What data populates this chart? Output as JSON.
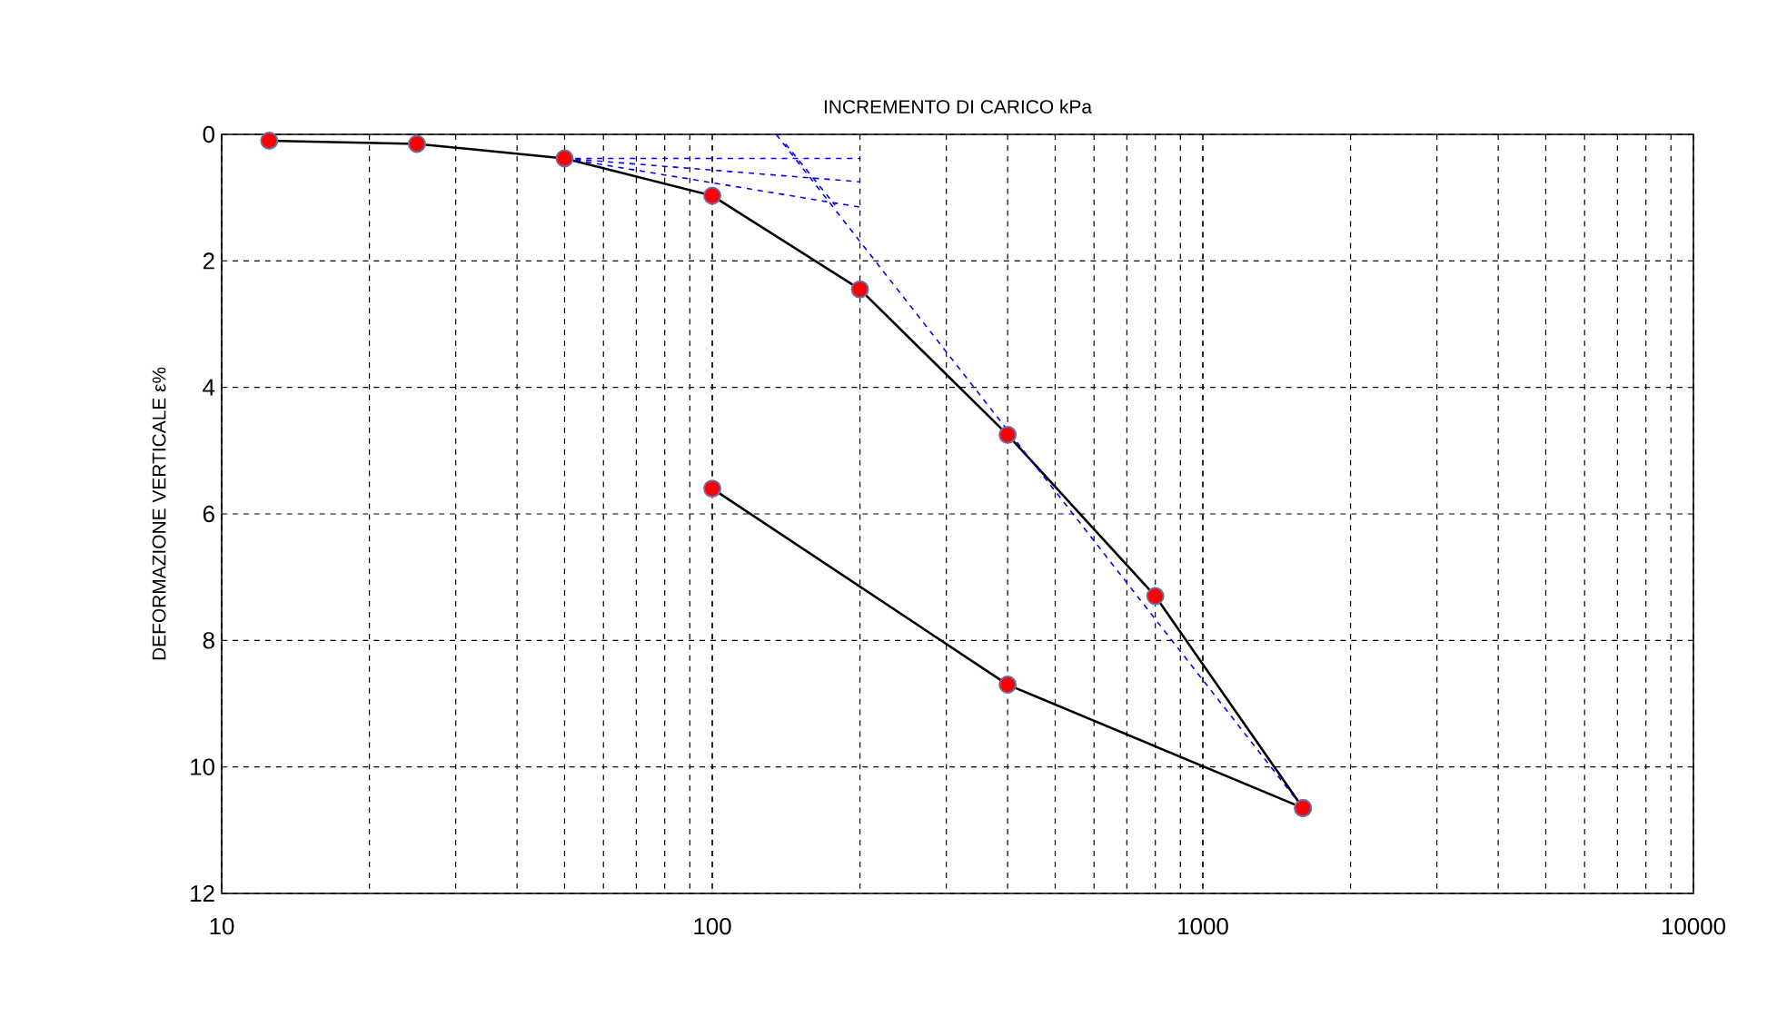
{
  "chart_data": {
    "type": "line",
    "title": "INCREMENTO DI CARICO  kPa",
    "ylabel": "DEFORMAZIONE VERTICALE  ε%",
    "log": "x",
    "xlim": [
      10,
      10000
    ],
    "xticks": [
      10,
      100,
      1000,
      10000
    ],
    "ylim": [
      12,
      0
    ],
    "yticks": [
      0,
      2,
      4,
      6,
      8,
      10,
      12
    ],
    "grid": true,
    "series": [
      {
        "color": "#ff0000",
        "marker": "circle",
        "line_style": "solid",
        "x": [
          12.5,
          25,
          50,
          100,
          200,
          400,
          800,
          1600
        ],
        "values": [
          0.1,
          0.15,
          0.38,
          0.97,
          2.45,
          4.75,
          7.3,
          10.65
        ]
      },
      {
        "color": "#ff0000",
        "marker": "circle",
        "line_style": "solid",
        "x": [
          1600,
          400,
          100
        ],
        "values": [
          10.65,
          8.7,
          5.6
        ]
      },
      {
        "color": "#0000ff",
        "marker": "none",
        "line_style": "dashed",
        "x": [
          50,
          200
        ],
        "values": [
          0.38,
          0.38
        ]
      },
      {
        "color": "#0000ff",
        "marker": "none",
        "line_style": "dashed",
        "x": [
          50,
          200
        ],
        "values": [
          0.38,
          0.75
        ]
      },
      {
        "color": "#0000ff",
        "marker": "none",
        "line_style": "dashed",
        "x": [
          50,
          200
        ],
        "values": [
          0.38,
          1.15
        ]
      },
      {
        "color": "#0000ff",
        "marker": "none",
        "line_style": "dashed",
        "x": [
          141,
          178
        ],
        "values": [
          0.15,
          1.12
        ]
      },
      {
        "color": "#0000ff",
        "marker": "none",
        "line_style": "dashed",
        "x": [
          135,
          1600
        ],
        "values": [
          0,
          10.65
        ]
      }
    ]
  }
}
